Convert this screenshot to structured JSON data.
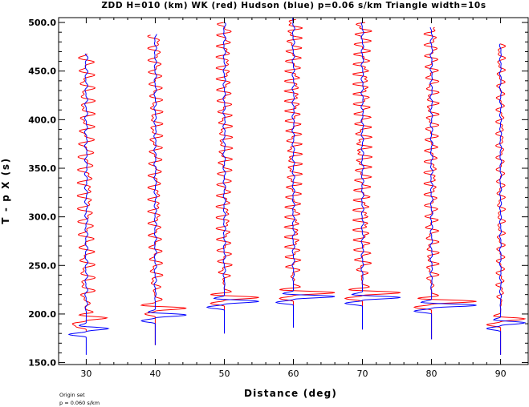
{
  "chart_data": {
    "type": "line",
    "title": "ZDD H=010 (km) WK (red) Hudson (blue) p=0.06 s/km Triangle width=10s",
    "xlabel": "Distance (deg)",
    "ylabel": "T - p X (s)",
    "xlim": [
      26,
      94
    ],
    "ylim": [
      148,
      505
    ],
    "x_ticks": [
      30,
      40,
      50,
      60,
      70,
      80,
      90
    ],
    "x_tick_labels": [
      "30",
      "40",
      "50",
      "60",
      "70",
      "80",
      "90"
    ],
    "y_ticks": [
      150,
      200,
      250,
      300,
      350,
      400,
      450,
      500
    ],
    "y_tick_labels": [
      "150.0",
      "200.0",
      "250.0",
      "300.0",
      "350.0",
      "400.0",
      "450.0",
      "500.0"
    ],
    "grid": false,
    "series": [
      {
        "name": "WK",
        "color": "#ff0000",
        "traces": [
          {
            "distance": 30,
            "t_start": 182,
            "t_end": 468,
            "arrival_t": 184,
            "arrival_shape": [
              [
                0,
                0
              ],
              [
                3,
                -1.5
              ],
              [
                6,
                -2
              ],
              [
                9,
                0
              ],
              [
                12,
                3
              ],
              [
                15,
                -1
              ],
              [
                18,
                1
              ],
              [
                21,
                0
              ]
            ],
            "coda_amplitude": 1.3,
            "coda_period": 13
          },
          {
            "distance": 40,
            "t_start": 168,
            "t_end": 487,
            "arrival_t": 197,
            "arrival_shape": [
              [
                0,
                0
              ],
              [
                3,
                -1.5
              ],
              [
                6,
                0
              ],
              [
                9,
                4.5
              ],
              [
                12,
                -2
              ],
              [
                15,
                0
              ],
              [
                18,
                1
              ],
              [
                21,
                0
              ]
            ],
            "coda_amplitude": 1.1,
            "coda_period": 12
          },
          {
            "distance": 50,
            "t_start": 180,
            "t_end": 500,
            "arrival_t": 208,
            "arrival_shape": [
              [
                0,
                0
              ],
              [
                3,
                -2
              ],
              [
                6,
                0
              ],
              [
                9,
                5
              ],
              [
                12,
                -2
              ],
              [
                15,
                1
              ],
              [
                18,
                0
              ]
            ],
            "coda_amplitude": 1.2,
            "coda_period": 11
          },
          {
            "distance": 60,
            "t_start": 186,
            "t_end": 503,
            "arrival_t": 213,
            "arrival_shape": [
              [
                0,
                0
              ],
              [
                3,
                -2
              ],
              [
                6,
                0
              ],
              [
                9,
                6
              ],
              [
                12,
                -2
              ],
              [
                15,
                1
              ],
              [
                18,
                0
              ]
            ],
            "coda_amplitude": 1.3,
            "coda_period": 10
          },
          {
            "distance": 70,
            "t_start": 184,
            "t_end": 500,
            "arrival_t": 213,
            "arrival_shape": [
              [
                0,
                0
              ],
              [
                3,
                -2.5
              ],
              [
                6,
                0
              ],
              [
                9,
                5.5
              ],
              [
                12,
                -2
              ],
              [
                15,
                1
              ],
              [
                18,
                0
              ]
            ],
            "coda_amplitude": 1.4,
            "coda_period": 10
          },
          {
            "distance": 80,
            "t_start": 174,
            "t_end": 495,
            "arrival_t": 204,
            "arrival_shape": [
              [
                0,
                0
              ],
              [
                3,
                -2.5
              ],
              [
                6,
                0
              ],
              [
                9,
                6.5
              ],
              [
                12,
                -2
              ],
              [
                15,
                1
              ],
              [
                18,
                0
              ]
            ],
            "coda_amplitude": 1.1,
            "coda_period": 11
          },
          {
            "distance": 90,
            "t_start": 158,
            "t_end": 478,
            "arrival_t": 186,
            "arrival_shape": [
              [
                0,
                0
              ],
              [
                3,
                -2
              ],
              [
                6,
                0
              ],
              [
                9,
                3.5
              ],
              [
                12,
                -1
              ],
              [
                15,
                0
              ]
            ],
            "coda_amplitude": 0.7,
            "coda_period": 12
          }
        ]
      },
      {
        "name": "Hudson",
        "color": "#0000ff",
        "traces": [
          {
            "distance": 30,
            "t_start": 158,
            "t_end": 468,
            "arrival_t": 176,
            "arrival_shape": [
              [
                0,
                0
              ],
              [
                3,
                -2.5
              ],
              [
                6,
                0
              ],
              [
                9,
                3.2
              ],
              [
                12,
                -1
              ],
              [
                15,
                0
              ]
            ],
            "coda_amplitude": 0.25,
            "coda_period": 14
          },
          {
            "distance": 40,
            "t_start": 168,
            "t_end": 488,
            "arrival_t": 190,
            "arrival_shape": [
              [
                0,
                0
              ],
              [
                3,
                -2
              ],
              [
                6,
                0
              ],
              [
                9,
                4.5
              ],
              [
                12,
                -1
              ],
              [
                15,
                0
              ]
            ],
            "coda_amplitude": 0.2,
            "coda_period": 14
          },
          {
            "distance": 50,
            "t_start": 180,
            "t_end": 500,
            "arrival_t": 204,
            "arrival_shape": [
              [
                0,
                0
              ],
              [
                3,
                -2.5
              ],
              [
                6,
                0
              ],
              [
                9,
                5
              ],
              [
                12,
                -1.5
              ],
              [
                15,
                0
              ]
            ],
            "coda_amplitude": 0.2,
            "coda_period": 14
          },
          {
            "distance": 60,
            "t_start": 186,
            "t_end": 505,
            "arrival_t": 209,
            "arrival_shape": [
              [
                0,
                0
              ],
              [
                3,
                -2.5
              ],
              [
                6,
                0
              ],
              [
                9,
                6
              ],
              [
                12,
                -1.5
              ],
              [
                15,
                0
              ]
            ],
            "coda_amplitude": 0.2,
            "coda_period": 14
          },
          {
            "distance": 70,
            "t_start": 184,
            "t_end": 500,
            "arrival_t": 208,
            "arrival_shape": [
              [
                0,
                0
              ],
              [
                3,
                -2.5
              ],
              [
                6,
                0
              ],
              [
                9,
                5.5
              ],
              [
                12,
                -1.5
              ],
              [
                15,
                0
              ]
            ],
            "coda_amplitude": 0.2,
            "coda_period": 14
          },
          {
            "distance": 80,
            "t_start": 174,
            "t_end": 495,
            "arrival_t": 200,
            "arrival_shape": [
              [
                0,
                0
              ],
              [
                3,
                -2.5
              ],
              [
                6,
                0
              ],
              [
                9,
                6.5
              ],
              [
                12,
                -1.5
              ],
              [
                15,
                0
              ]
            ],
            "coda_amplitude": 0.2,
            "coda_period": 14
          },
          {
            "distance": 90,
            "t_start": 158,
            "t_end": 478,
            "arrival_t": 182,
            "arrival_shape": [
              [
                0,
                0
              ],
              [
                3,
                -2
              ],
              [
                6,
                0
              ],
              [
                9,
                3.5
              ],
              [
                12,
                -1
              ],
              [
                15,
                0
              ]
            ],
            "coda_amplitude": 0.15,
            "coda_period": 14
          }
        ]
      }
    ]
  },
  "footnote": {
    "line1": "Origin set",
    "line2": "p = 0.060 s/km"
  }
}
